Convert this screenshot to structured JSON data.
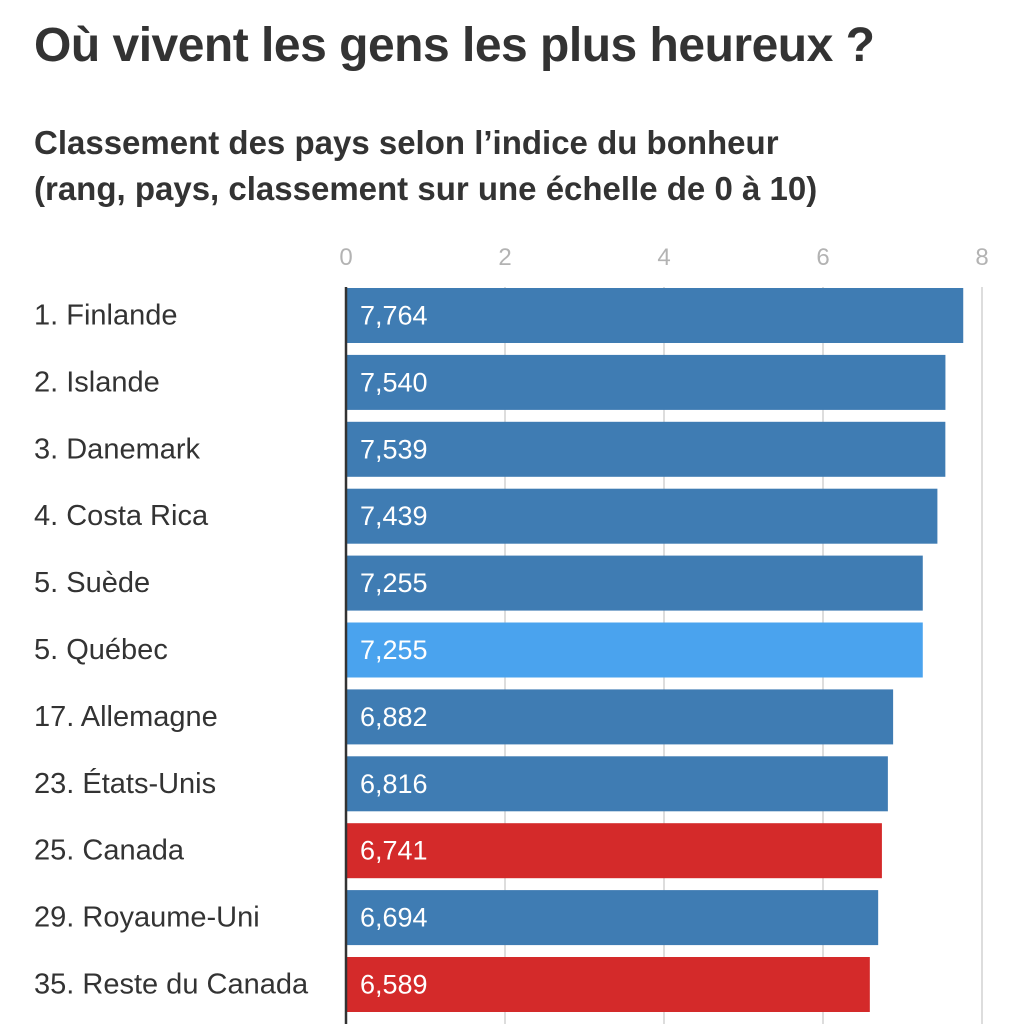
{
  "header": {
    "title": "Où vivent les gens les plus heureux ?",
    "subtitle_line1": "Classement des pays selon l’indice du bonheur",
    "subtitle_line2": "(rang, pays, classement sur une échelle de 0 à 10)"
  },
  "chart_data": {
    "type": "bar",
    "orientation": "horizontal",
    "title": "Où vivent les gens les plus heureux ?",
    "subtitle": "Classement des pays selon l’indice du bonheur (rang, pays, classement sur une échelle de 0 à 10)",
    "xlim": [
      0,
      8
    ],
    "xticks": [
      0,
      2,
      4,
      6,
      8
    ],
    "grid": true,
    "categories": [
      "1. Finlande",
      "2. Islande",
      "3. Danemark",
      "4. Costa Rica",
      "5. Suède",
      "5. Québec",
      "17. Allemagne",
      "23. États-Unis",
      "25. Canada",
      "29. Royaume-Uni",
      "35. Reste du Canada"
    ],
    "values": [
      7.764,
      7.54,
      7.539,
      7.439,
      7.255,
      7.255,
      6.882,
      6.816,
      6.741,
      6.694,
      6.589
    ],
    "value_labels": [
      "7,764",
      "7,540",
      "7,539",
      "7,439",
      "7,255",
      "7,255",
      "6,882",
      "6,816",
      "6,741",
      "6,694",
      "6,589"
    ],
    "bar_colors": [
      "#3f7cb3",
      "#3f7cb3",
      "#3f7cb3",
      "#3f7cb3",
      "#3f7cb3",
      "#4aa3ee",
      "#3f7cb3",
      "#3f7cb3",
      "#d42a2a",
      "#3f7cb3",
      "#d42a2a"
    ],
    "colors": {
      "default": "#3f7cb3",
      "quebec": "#4aa3ee",
      "canada": "#d42a2a",
      "grid": "#dddddd",
      "axis": "#333333"
    }
  }
}
